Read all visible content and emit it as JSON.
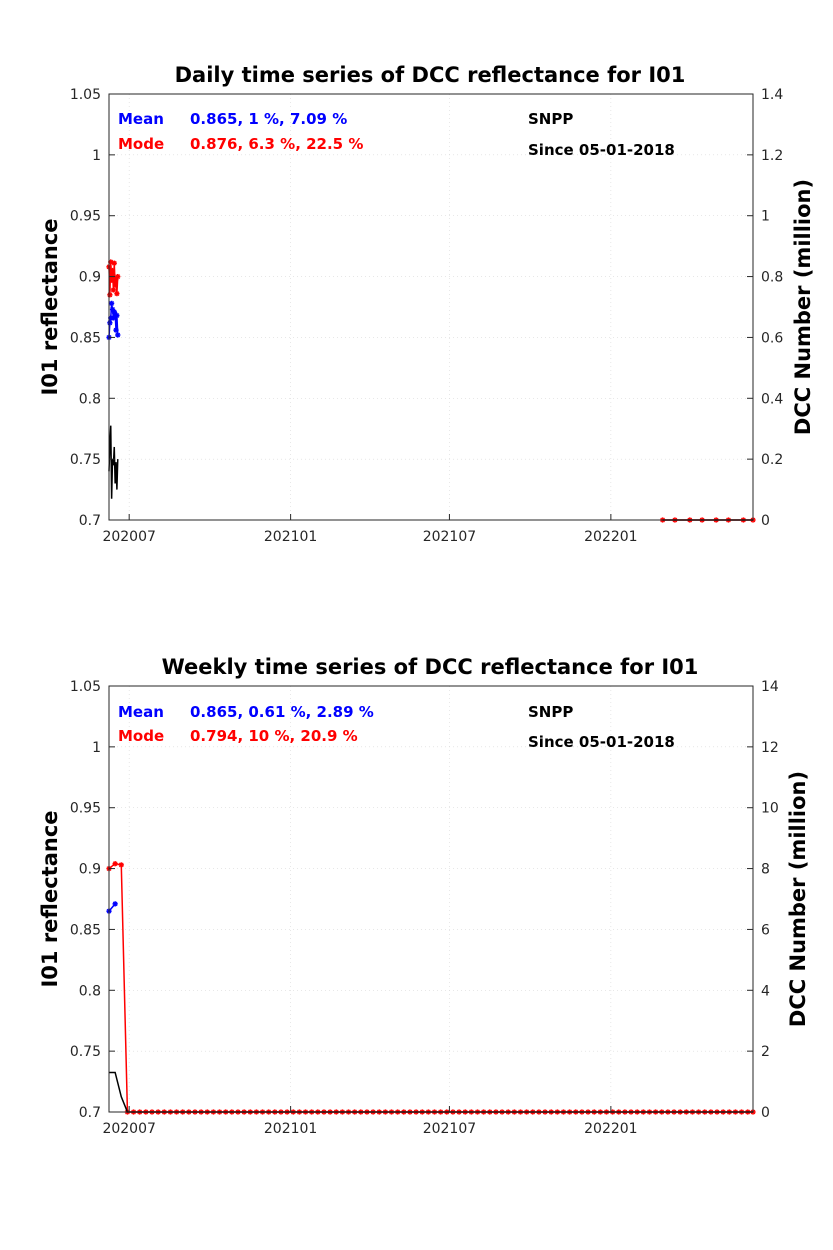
{
  "chart_data": [
    {
      "type": "line",
      "title": "Daily time series of DCC reflectance for I01",
      "ylabel": "I01 reflectance",
      "y2label": "DCC Number (million)",
      "ylim": [
        0.7,
        1.05
      ],
      "y2lim": [
        0,
        1.4
      ],
      "xlim": [
        "2020-06-08",
        "2022-06-12"
      ],
      "xtick_labels": [
        "202007",
        "202101",
        "202107",
        "202201"
      ],
      "xtick_dates": [
        "2020-07-01",
        "2021-01-01",
        "2021-07-01",
        "2022-01-01"
      ],
      "ytick_labels": [
        "0.7",
        "0.75",
        "0.8",
        "0.85",
        "0.9",
        "0.95",
        "1",
        "1.05"
      ],
      "y2tick_labels": [
        "0",
        "0.2",
        "0.4",
        "0.6",
        "0.8",
        "1",
        "1.2",
        "1.4"
      ],
      "grid": true,
      "annotations": {
        "mean_label": "Mean",
        "mean_stats": "0.865, 1 %, 7.09 %",
        "mode_label": "Mode",
        "mode_stats": "0.876, 6.3 %, 22.5 %",
        "satellite": "SNPP",
        "since": "Since 05-01-2018"
      },
      "series": [
        {
          "axis": "left",
          "color": "#0000ff",
          "marker": "star",
          "x": [
            "2020-06-08",
            "2020-06-09",
            "2020-06-10",
            "2020-06-11",
            "2020-06-12",
            "2020-06-13",
            "2020-06-14",
            "2020-06-15",
            "2020-06-16",
            "2020-06-17",
            "2020-06-18"
          ],
          "y": [
            0.85,
            0.862,
            0.866,
            0.878,
            0.873,
            0.866,
            0.871,
            0.869,
            0.856,
            0.868,
            0.852
          ]
        },
        {
          "axis": "left",
          "color": "#ff0000",
          "marker": "star",
          "x": [
            "2020-06-08",
            "2020-06-09",
            "2020-06-10",
            "2020-06-11",
            "2020-06-12",
            "2020-06-13",
            "2020-06-14",
            "2020-06-15",
            "2020-06-16",
            "2020-06-17",
            "2020-06-18"
          ],
          "y": [
            0.908,
            0.885,
            0.912,
            0.897,
            0.905,
            0.889,
            0.911,
            0.893,
            0.898,
            0.886,
            0.9
          ]
        },
        {
          "axis": "right",
          "color": "#000000",
          "marker": "none",
          "x": [
            "2020-06-08",
            "2020-06-09",
            "2020-06-10",
            "2020-06-11",
            "2020-06-12",
            "2020-06-13",
            "2020-06-14",
            "2020-06-15",
            "2020-06-16",
            "2020-06-17",
            "2020-06-18"
          ],
          "y": [
            0.16,
            0.25,
            0.31,
            0.07,
            0.2,
            0.18,
            0.24,
            0.12,
            0.19,
            0.1,
            0.2
          ]
        },
        {
          "axis": "left",
          "color": "#ff0000",
          "marker": "star",
          "x": [
            "2022-03-01",
            "2022-03-15",
            "2022-04-01",
            "2022-04-15",
            "2022-05-01",
            "2022-05-15",
            "2022-06-01",
            "2022-06-12"
          ],
          "y": [
            0.7,
            0.7,
            0.7,
            0.7,
            0.7,
            0.7,
            0.7,
            0.7
          ]
        },
        {
          "axis": "right",
          "color": "#000000",
          "marker": "none",
          "x": [
            "2022-03-01",
            "2022-06-12"
          ],
          "y": [
            0,
            0
          ]
        }
      ]
    },
    {
      "type": "line",
      "title": "Weekly time series of DCC reflectance for I01",
      "ylabel": "I01 reflectance",
      "y2label": "DCC Number (million)",
      "ylim": [
        0.7,
        1.05
      ],
      "y2lim": [
        0,
        14
      ],
      "xlim": [
        "2020-06-08",
        "2022-06-12"
      ],
      "xtick_labels": [
        "202007",
        "202101",
        "202107",
        "202201"
      ],
      "xtick_dates": [
        "2020-07-01",
        "2021-01-01",
        "2021-07-01",
        "2022-01-01"
      ],
      "ytick_labels": [
        "0.7",
        "0.75",
        "0.8",
        "0.85",
        "0.9",
        "0.95",
        "1",
        "1.05"
      ],
      "y2tick_labels": [
        "0",
        "2",
        "4",
        "6",
        "8",
        "10",
        "12",
        "14"
      ],
      "grid": true,
      "annotations": {
        "mean_label": "Mean",
        "mean_stats": "0.865, 0.61 %, 2.89 %",
        "mode_label": "Mode",
        "mode_stats": "0.794, 10 %, 20.9 %",
        "satellite": "SNPP",
        "since": "Since 05-01-2018"
      },
      "series": [
        {
          "axis": "left",
          "color": "#0000ff",
          "marker": "star",
          "x": [
            "2020-06-08",
            "2020-06-15"
          ],
          "y": [
            0.865,
            0.871
          ]
        },
        {
          "axis": "left",
          "color": "#ff0000",
          "marker": "star",
          "x": [
            "2020-06-08",
            "2020-06-15",
            "2020-06-22",
            "2020-06-29",
            "2020-07-06",
            "2020-07-13",
            "2020-07-20",
            "2020-07-27",
            "2020-08-03",
            "2020-08-10",
            "2020-08-17",
            "2020-08-24",
            "2020-08-31",
            "2020-09-07",
            "2020-09-14",
            "2020-09-21",
            "2020-09-28",
            "2020-10-05",
            "2020-10-12",
            "2020-10-19",
            "2020-10-26",
            "2020-11-02",
            "2020-11-09",
            "2020-11-16",
            "2020-11-23",
            "2020-11-30",
            "2020-12-07",
            "2020-12-14",
            "2020-12-21",
            "2020-12-28",
            "2021-01-04",
            "2021-01-11",
            "2021-01-18",
            "2021-01-25",
            "2021-02-01",
            "2021-02-08",
            "2021-02-15",
            "2021-02-22",
            "2021-03-01",
            "2021-03-08",
            "2021-03-15",
            "2021-03-22",
            "2021-03-29",
            "2021-04-05",
            "2021-04-12",
            "2021-04-19",
            "2021-04-26",
            "2021-05-03",
            "2021-05-10",
            "2021-05-17",
            "2021-05-24",
            "2021-05-31",
            "2021-06-07",
            "2021-06-14",
            "2021-06-21",
            "2021-06-28",
            "2021-07-05",
            "2021-07-12",
            "2021-07-19",
            "2021-07-26",
            "2021-08-02",
            "2021-08-09",
            "2021-08-16",
            "2021-08-23",
            "2021-08-30",
            "2021-09-06",
            "2021-09-13",
            "2021-09-20",
            "2021-09-27",
            "2021-10-04",
            "2021-10-11",
            "2021-10-18",
            "2021-10-25",
            "2021-11-01",
            "2021-11-08",
            "2021-11-15",
            "2021-11-22",
            "2021-11-29",
            "2021-12-06",
            "2021-12-13",
            "2021-12-20",
            "2021-12-27",
            "2022-01-03",
            "2022-01-10",
            "2022-01-17",
            "2022-01-24",
            "2022-01-31",
            "2022-02-07",
            "2022-02-14",
            "2022-02-21",
            "2022-02-28",
            "2022-03-07",
            "2022-03-14",
            "2022-03-21",
            "2022-03-28",
            "2022-04-04",
            "2022-04-11",
            "2022-04-18",
            "2022-04-25",
            "2022-05-02",
            "2022-05-09",
            "2022-05-16",
            "2022-05-23",
            "2022-05-30",
            "2022-06-06",
            "2022-06-12"
          ],
          "y": [
            0.9,
            0.904,
            0.903,
            0.7,
            0.7,
            0.7,
            0.7,
            0.7,
            0.7,
            0.7,
            0.7,
            0.7,
            0.7,
            0.7,
            0.7,
            0.7,
            0.7,
            0.7,
            0.7,
            0.7,
            0.7,
            0.7,
            0.7,
            0.7,
            0.7,
            0.7,
            0.7,
            0.7,
            0.7,
            0.7,
            0.7,
            0.7,
            0.7,
            0.7,
            0.7,
            0.7,
            0.7,
            0.7,
            0.7,
            0.7,
            0.7,
            0.7,
            0.7,
            0.7,
            0.7,
            0.7,
            0.7,
            0.7,
            0.7,
            0.7,
            0.7,
            0.7,
            0.7,
            0.7,
            0.7,
            0.7,
            0.7,
            0.7,
            0.7,
            0.7,
            0.7,
            0.7,
            0.7,
            0.7,
            0.7,
            0.7,
            0.7,
            0.7,
            0.7,
            0.7,
            0.7,
            0.7,
            0.7,
            0.7,
            0.7,
            0.7,
            0.7,
            0.7,
            0.7,
            0.7,
            0.7,
            0.7,
            0.7,
            0.7,
            0.7,
            0.7,
            0.7,
            0.7,
            0.7,
            0.7,
            0.7,
            0.7,
            0.7,
            0.7,
            0.7,
            0.7,
            0.7,
            0.7,
            0.7,
            0.7,
            0.7,
            0.7,
            0.7,
            0.7,
            0.7,
            0.7
          ]
        },
        {
          "axis": "right",
          "color": "#000000",
          "marker": "none",
          "x": [
            "2020-06-08",
            "2020-06-15",
            "2020-06-22",
            "2020-06-29",
            "2022-06-12"
          ],
          "y": [
            1.3,
            1.3,
            0.5,
            0,
            0
          ]
        }
      ]
    }
  ]
}
